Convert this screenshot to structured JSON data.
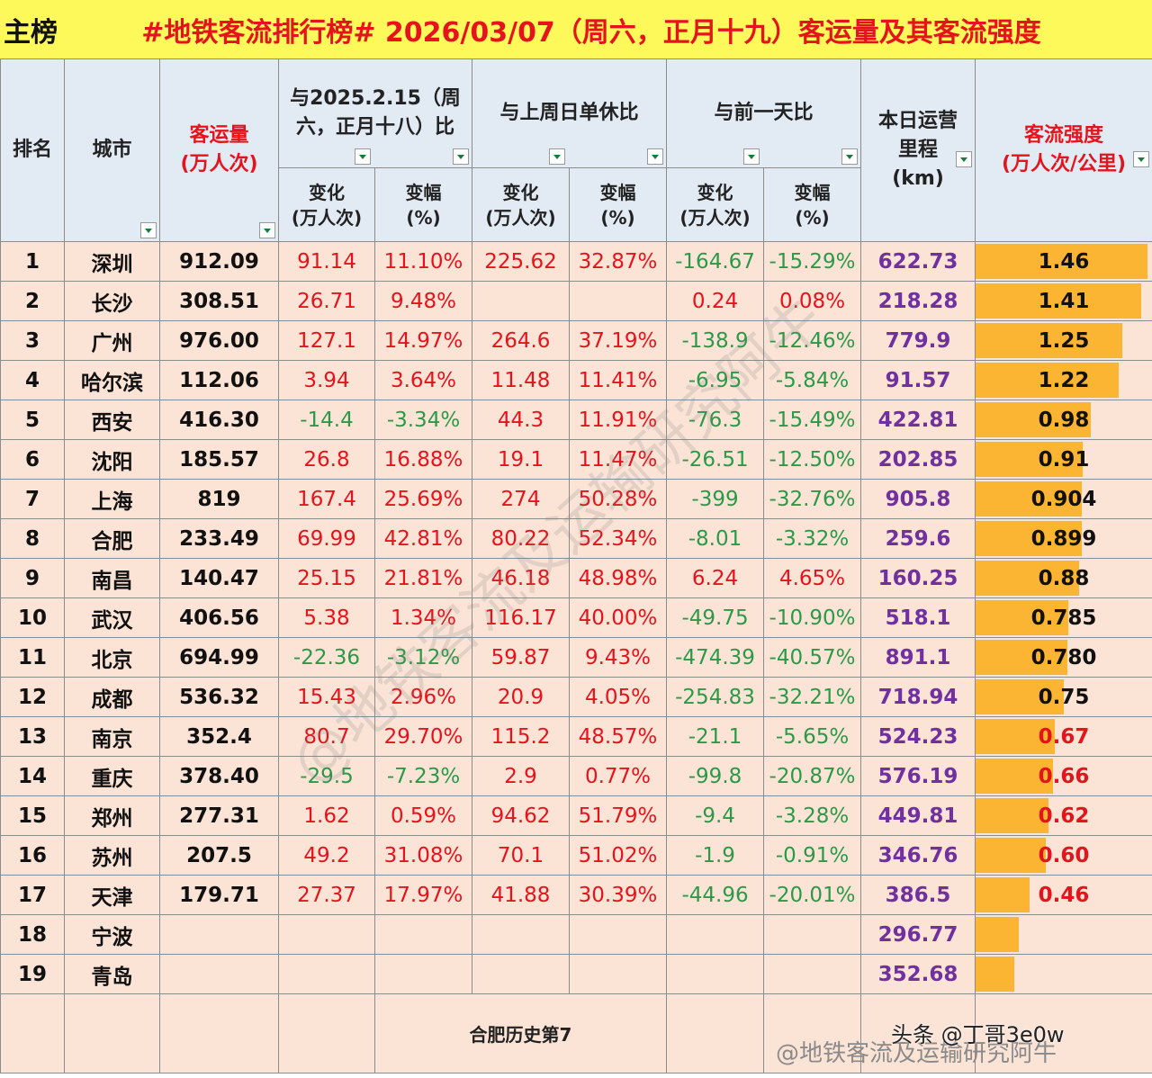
{
  "title": {
    "tag": "主榜",
    "text": "#地铁客流排行榜# 2026/03/07（周六，正月十九）客运量及其客流强度"
  },
  "headers": {
    "rank": "排名",
    "city": "城市",
    "volume": "客运量\n(万人次)",
    "cmp_last_year": "与2025.2.15（周六，正月十八）比",
    "cmp_last_week": "与上周日单休比",
    "cmp_prev_day": "与前一天比",
    "mileage": "本日运营\n里程\n(km)",
    "intensity": "客流强度\n(万人次/公里)",
    "change": "变化\n(万人次)",
    "pct": "变幅\n(%)"
  },
  "rows": [
    {
      "rank": "1",
      "city": "深圳",
      "volume": "912.09",
      "ly_c": "91.14",
      "ly_p": "11.10%",
      "lw_c": "225.62",
      "lw_p": "32.87%",
      "pd_c": "-164.67",
      "pd_p": "-15.29%",
      "km": "622.73",
      "intensity": "1.46",
      "level": 1.46
    },
    {
      "rank": "2",
      "city": "长沙",
      "volume": "308.51",
      "ly_c": "26.71",
      "ly_p": "9.48%",
      "lw_c": "",
      "lw_p": "",
      "pd_c": "0.24",
      "pd_p": "0.08%",
      "km": "218.28",
      "intensity": "1.41",
      "level": 1.41
    },
    {
      "rank": "3",
      "city": "广州",
      "volume": "976.00",
      "ly_c": "127.1",
      "ly_p": "14.97%",
      "lw_c": "264.6",
      "lw_p": "37.19%",
      "pd_c": "-138.9",
      "pd_p": "-12.46%",
      "km": "779.9",
      "intensity": "1.25",
      "level": 1.25
    },
    {
      "rank": "4",
      "city": "哈尔滨",
      "volume": "112.06",
      "ly_c": "3.94",
      "ly_p": "3.64%",
      "lw_c": "11.48",
      "lw_p": "11.41%",
      "pd_c": "-6.95",
      "pd_p": "-5.84%",
      "km": "91.57",
      "intensity": "1.22",
      "level": 1.22
    },
    {
      "rank": "5",
      "city": "西安",
      "volume": "416.30",
      "ly_c": "-14.4",
      "ly_p": "-3.34%",
      "lw_c": "44.3",
      "lw_p": "11.91%",
      "pd_c": "-76.3",
      "pd_p": "-15.49%",
      "km": "422.81",
      "intensity": "0.98",
      "level": 0.98
    },
    {
      "rank": "6",
      "city": "沈阳",
      "volume": "185.57",
      "ly_c": "26.8",
      "ly_p": "16.88%",
      "lw_c": "19.1",
      "lw_p": "11.47%",
      "pd_c": "-26.51",
      "pd_p": "-12.50%",
      "km": "202.85",
      "intensity": "0.91",
      "level": 0.91
    },
    {
      "rank": "7",
      "city": "上海",
      "volume": "819",
      "ly_c": "167.4",
      "ly_p": "25.69%",
      "lw_c": "274",
      "lw_p": "50.28%",
      "pd_c": "-399",
      "pd_p": "-32.76%",
      "km": "905.8",
      "intensity": "0.904",
      "level": 0.904
    },
    {
      "rank": "8",
      "city": "合肥",
      "volume": "233.49",
      "ly_c": "69.99",
      "ly_p": "42.81%",
      "lw_c": "80.22",
      "lw_p": "52.34%",
      "pd_c": "-8.01",
      "pd_p": "-3.32%",
      "km": "259.6",
      "intensity": "0.899",
      "level": 0.899
    },
    {
      "rank": "9",
      "city": "南昌",
      "volume": "140.47",
      "ly_c": "25.15",
      "ly_p": "21.81%",
      "lw_c": "46.18",
      "lw_p": "48.98%",
      "pd_c": "6.24",
      "pd_p": "4.65%",
      "km": "160.25",
      "intensity": "0.88",
      "level": 0.88
    },
    {
      "rank": "10",
      "city": "武汉",
      "volume": "406.56",
      "ly_c": "5.38",
      "ly_p": "1.34%",
      "lw_c": "116.17",
      "lw_p": "40.00%",
      "pd_c": "-49.75",
      "pd_p": "-10.90%",
      "km": "518.1",
      "intensity": "0.785",
      "level": 0.785
    },
    {
      "rank": "11",
      "city": "北京",
      "volume": "694.99",
      "ly_c": "-22.36",
      "ly_p": "-3.12%",
      "lw_c": "59.87",
      "lw_p": "9.43%",
      "pd_c": "-474.39",
      "pd_p": "-40.57%",
      "km": "891.1",
      "intensity": "0.780",
      "level": 0.78
    },
    {
      "rank": "12",
      "city": "成都",
      "volume": "536.32",
      "ly_c": "15.43",
      "ly_p": "2.96%",
      "lw_c": "20.9",
      "lw_p": "4.05%",
      "pd_c": "-254.83",
      "pd_p": "-32.21%",
      "km": "718.94",
      "intensity": "0.75",
      "level": 0.75
    },
    {
      "rank": "13",
      "city": "南京",
      "volume": "352.4",
      "ly_c": "80.7",
      "ly_p": "29.70%",
      "lw_c": "115.2",
      "lw_p": "48.57%",
      "pd_c": "-21.1",
      "pd_p": "-5.65%",
      "km": "524.23",
      "intensity": "0.67",
      "level": 0.67
    },
    {
      "rank": "14",
      "city": "重庆",
      "volume": "378.40",
      "ly_c": "-29.5",
      "ly_p": "-7.23%",
      "lw_c": "2.9",
      "lw_p": "0.77%",
      "pd_c": "-99.8",
      "pd_p": "-20.87%",
      "km": "576.19",
      "intensity": "0.66",
      "level": 0.66
    },
    {
      "rank": "15",
      "city": "郑州",
      "volume": "277.31",
      "ly_c": "1.62",
      "ly_p": "0.59%",
      "lw_c": "94.62",
      "lw_p": "51.79%",
      "pd_c": "-9.4",
      "pd_p": "-3.28%",
      "km": "449.81",
      "intensity": "0.62",
      "level": 0.62
    },
    {
      "rank": "16",
      "city": "苏州",
      "volume": "207.5",
      "ly_c": "49.2",
      "ly_p": "31.08%",
      "lw_c": "70.1",
      "lw_p": "51.02%",
      "pd_c": "-1.9",
      "pd_p": "-0.91%",
      "km": "346.76",
      "intensity": "0.60",
      "level": 0.6
    },
    {
      "rank": "17",
      "city": "天津",
      "volume": "179.71",
      "ly_c": "27.37",
      "ly_p": "17.97%",
      "lw_c": "41.88",
      "lw_p": "30.39%",
      "pd_c": "-44.96",
      "pd_p": "-20.01%",
      "km": "386.5",
      "intensity": "0.46",
      "level": 0.46
    },
    {
      "rank": "18",
      "city": "宁波",
      "volume": "",
      "ly_c": "",
      "ly_p": "",
      "lw_c": "",
      "lw_p": "",
      "pd_c": "",
      "pd_p": "",
      "km": "296.77",
      "intensity": "",
      "level": 0.37
    },
    {
      "rank": "19",
      "city": "青岛",
      "volume": "",
      "ly_c": "",
      "ly_p": "",
      "lw_c": "",
      "lw_p": "",
      "pd_c": "",
      "pd_p": "",
      "km": "352.68",
      "intensity": "",
      "level": 0.33
    }
  ],
  "bar_max": 1.5,
  "colors": {
    "positive": "#e5141c",
    "negative": "#2b9a48",
    "mileage": "#7030a0",
    "bar": "#fbb533"
  },
  "footer_note": "合肥历史第7",
  "watermark": {
    "credit": "头条 @丁哥3e0w",
    "source": "@地铁客流及运输研究阿牛",
    "diagonal": "@地铁客流及运输研究阿牛"
  }
}
